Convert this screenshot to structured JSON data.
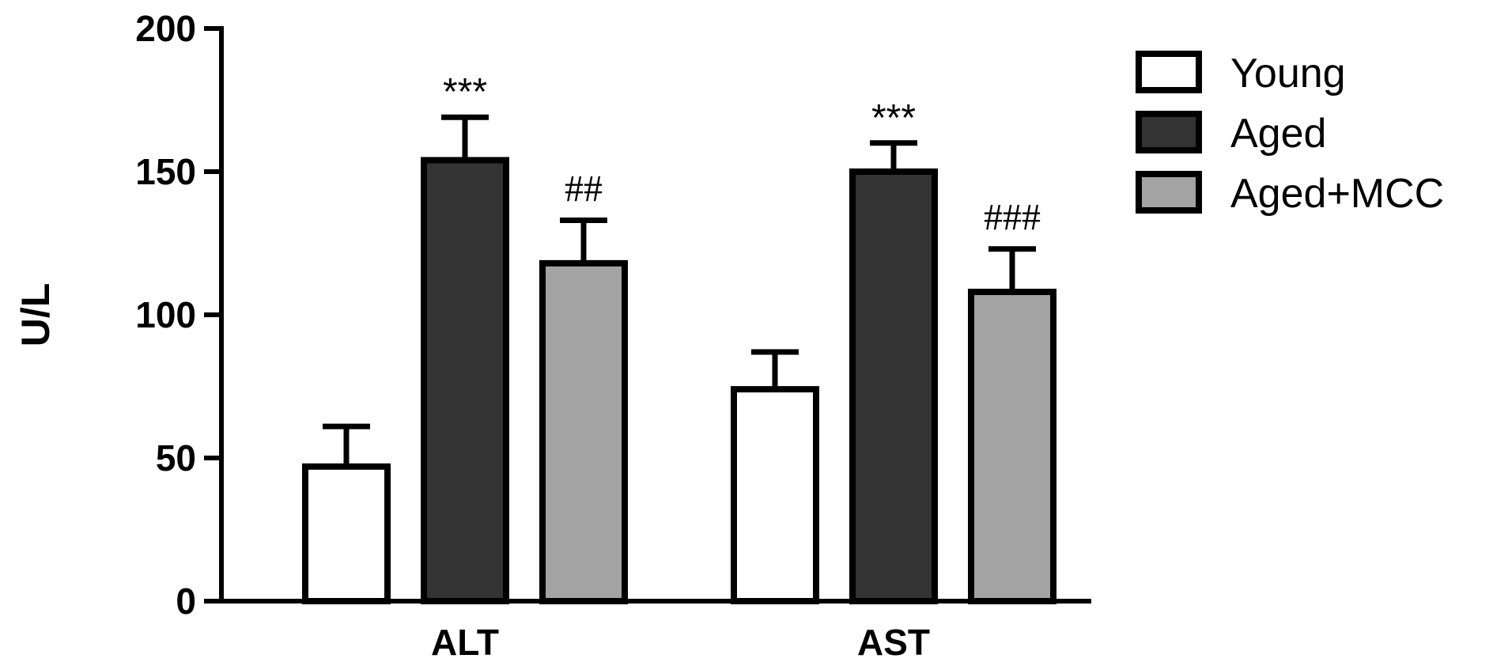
{
  "chart_data": {
    "type": "bar",
    "ylabel": "U/L",
    "ylim": [
      0,
      200
    ],
    "yticks": [
      0,
      50,
      100,
      150,
      200
    ],
    "categories": [
      "ALT",
      "AST"
    ],
    "series": [
      {
        "name": "Young",
        "color": "#ffffff",
        "values": [
          47,
          74
        ],
        "errors": [
          14,
          13
        ],
        "annotations": [
          "",
          ""
        ]
      },
      {
        "name": "Aged",
        "color": "#333333",
        "values": [
          154,
          150
        ],
        "errors": [
          15,
          10
        ],
        "annotations": [
          "***",
          "***"
        ]
      },
      {
        "name": "Aged+MCC",
        "color": "#a3a3a3",
        "values": [
          118,
          108
        ],
        "errors": [
          15,
          15
        ],
        "annotations": [
          "##",
          "###"
        ]
      }
    ],
    "legend_position": "top-right",
    "grid": false
  }
}
